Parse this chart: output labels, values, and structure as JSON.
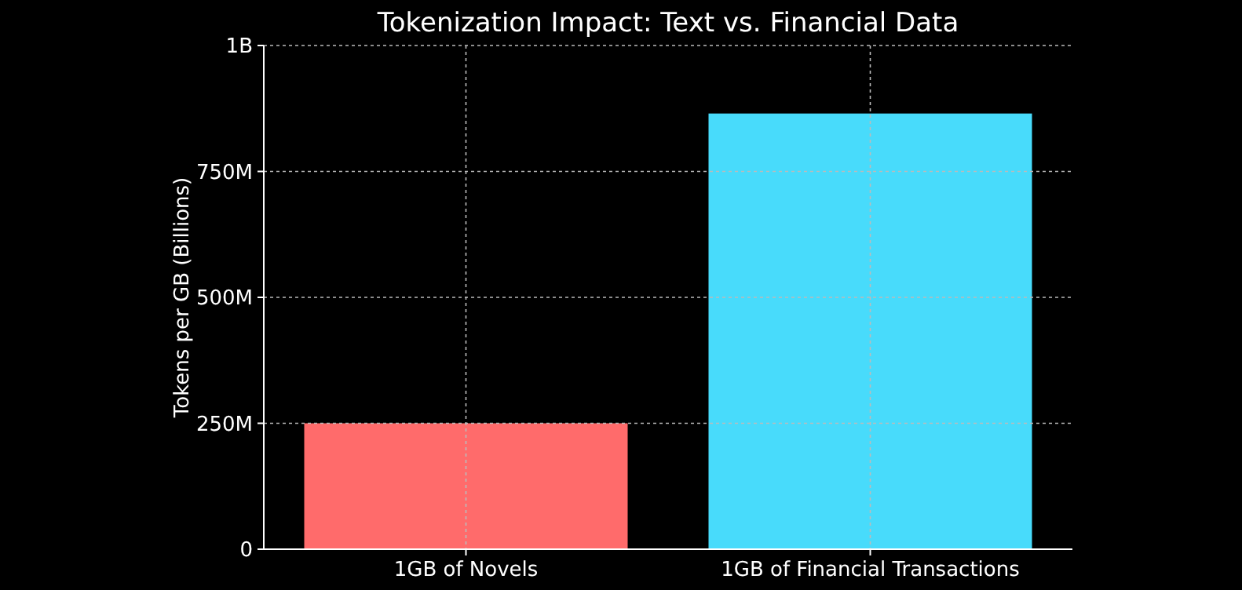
{
  "chart_data": {
    "type": "bar",
    "title": "Tokenization Impact: Text vs. Financial Data",
    "ylabel": "Tokens per GB (Billions)",
    "categories": [
      "1GB of Novels",
      "1GB of Financial Transactions"
    ],
    "values": [
      250000000,
      865000000
    ],
    "colors": [
      "#ff6b6b",
      "#48dbfb"
    ],
    "ylim": [
      0,
      1000000000
    ],
    "yticks": [
      {
        "value": 0,
        "label": "0"
      },
      {
        "value": 250000000,
        "label": "250M"
      },
      {
        "value": 500000000,
        "label": "500M"
      },
      {
        "value": 750000000,
        "label": "750M"
      },
      {
        "value": 1000000000,
        "label": "1B"
      }
    ],
    "grid": true
  }
}
